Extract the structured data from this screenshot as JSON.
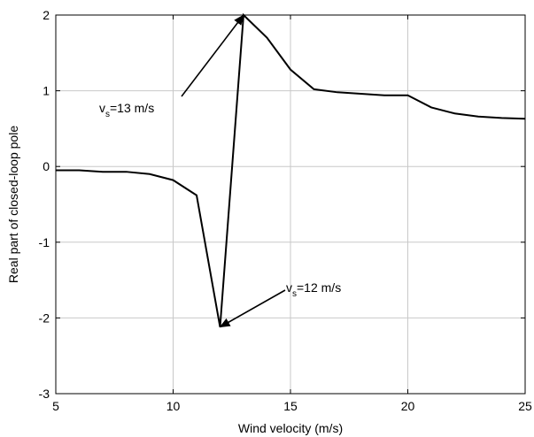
{
  "chart_data": {
    "type": "line",
    "title": "",
    "xlabel": "Wind velocity (m/s)",
    "ylabel": "Real part of closed-loop pole",
    "xlim": [
      5,
      25
    ],
    "ylim": [
      -3,
      2
    ],
    "xticks": [
      5,
      10,
      15,
      20,
      25
    ],
    "yticks": [
      -3,
      -2,
      -1,
      0,
      1,
      2
    ],
    "grid": true,
    "series": [
      {
        "color": "#000000",
        "x": [
          5,
          6,
          7,
          8,
          9,
          10,
          11,
          12,
          13,
          14,
          15,
          16,
          17,
          18,
          19,
          20,
          21,
          22,
          23,
          24,
          25
        ],
        "y": [
          -0.05,
          -0.05,
          -0.07,
          -0.07,
          -0.1,
          -0.18,
          -0.38,
          -2.12,
          2.0,
          1.7,
          1.28,
          1.02,
          0.98,
          0.96,
          0.94,
          0.94,
          0.78,
          0.7,
          0.66,
          0.64,
          0.63
        ]
      }
    ],
    "annotations": [
      {
        "prefix": "v",
        "subscript": "s",
        "suffix": "=13 m/s",
        "target": [
          13,
          2.0
        ]
      },
      {
        "prefix": "v",
        "subscript": "s",
        "suffix": "=12 m/s",
        "target": [
          12,
          -2.12
        ]
      }
    ]
  }
}
